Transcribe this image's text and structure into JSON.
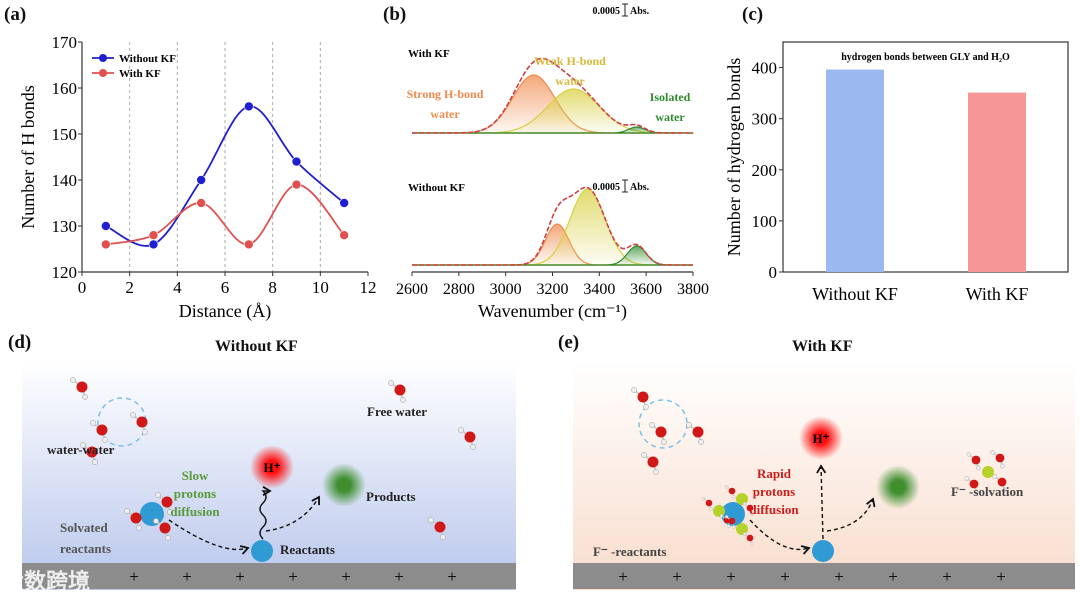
{
  "panel_labels": [
    "(a)",
    "(b)",
    "(c)",
    "(d)",
    "(e)"
  ],
  "chart_data": [
    {
      "type": "line",
      "panel": "(a)",
      "xlabel": "Distance (Å)",
      "ylabel": "Number of H bonds",
      "xlim": [
        0,
        12
      ],
      "ylim": [
        120,
        170
      ],
      "xticks": [
        0,
        2,
        4,
        6,
        8,
        10,
        12
      ],
      "yticks": [
        120,
        130,
        140,
        150,
        160,
        170
      ],
      "grid": "vertical dashed",
      "legend": "top-left",
      "x": [
        1,
        3,
        5,
        7,
        9,
        11
      ],
      "series": [
        {
          "name": "Without KF",
          "color": "#1f1fd0",
          "values": [
            130,
            126,
            140,
            156,
            144,
            135
          ]
        },
        {
          "name": "With KF",
          "color": "#e05050",
          "values": [
            126,
            128,
            135,
            126,
            139,
            128
          ]
        }
      ]
    },
    {
      "type": "area",
      "panel": "(b)",
      "xlabel": "Wavenumber (cm⁻¹)",
      "xlim": [
        2600,
        3800
      ],
      "xticks": [
        2600,
        2800,
        3000,
        3200,
        3400,
        3600,
        3800
      ],
      "scale_label": "0.0005",
      "scale_unit": "Abs.",
      "annotations": {
        "strong": [
          "Strong H-bond",
          "water"
        ],
        "weak": [
          "Weak H-bond",
          "water"
        ],
        "isolated": [
          "Isolated",
          "water"
        ]
      },
      "series": [
        {
          "name": "With KF",
          "peaks": [
            {
              "component": "Strong H-bond water",
              "center": 3120,
              "amplitude": 58,
              "width": 90,
              "color": "#f08a4b"
            },
            {
              "component": "Weak H-bond water",
              "center": 3290,
              "amplitude": 44,
              "width": 110,
              "color": "#d8d040"
            },
            {
              "component": "Isolated water",
              "center": 3560,
              "amplitude": 6,
              "width": 35,
              "color": "#2e8b2e"
            }
          ]
        },
        {
          "name": "Without KF",
          "peaks": [
            {
              "component": "Strong H-bond water",
              "center": 3220,
              "amplitude": 41,
              "width": 50,
              "color": "#f08a4b"
            },
            {
              "component": "Weak H-bond water",
              "center": 3350,
              "amplitude": 76,
              "width": 75,
              "color": "#d8d040"
            },
            {
              "component": "Isolated water",
              "center": 3560,
              "amplitude": 19,
              "width": 40,
              "color": "#2e8b2e"
            }
          ]
        }
      ]
    },
    {
      "type": "bar",
      "panel": "(c)",
      "title": "hydrogen bonds between GLY and H₂O",
      "ylabel": "Number of hydrogen bonds",
      "categories": [
        "Without KF",
        "With KF"
      ],
      "values": [
        396,
        351
      ],
      "colors": [
        "#9bb8f0",
        "#f79696"
      ],
      "ylim": [
        0,
        450
      ],
      "yticks": [
        0,
        100,
        200,
        300,
        400
      ]
    }
  ],
  "diagrams": {
    "d": {
      "title": "Without KF",
      "labels": {
        "free_water": "Free water",
        "water_water": "water-water",
        "diffusion": [
          "Slow",
          "protons",
          "diffusion"
        ],
        "products": "Products",
        "solvated": [
          "Solvated",
          "reactants"
        ],
        "reactants": "Reactants",
        "proton": "H⁺"
      },
      "bg_top": "#ffffff",
      "bg_bottom": "#b8c6ec"
    },
    "e": {
      "title": "With KF",
      "labels": {
        "diffusion": [
          "Rapid",
          "protons",
          "diffusion"
        ],
        "f_solvation": "F⁻ -solvation",
        "f_reactants": "F⁻ -reactants",
        "proton": "H⁺"
      },
      "bg_top": "#ffffff",
      "bg_bottom": "#f8dccb"
    },
    "electrode_sign": "+"
  },
  "watermark": "大数跨境"
}
